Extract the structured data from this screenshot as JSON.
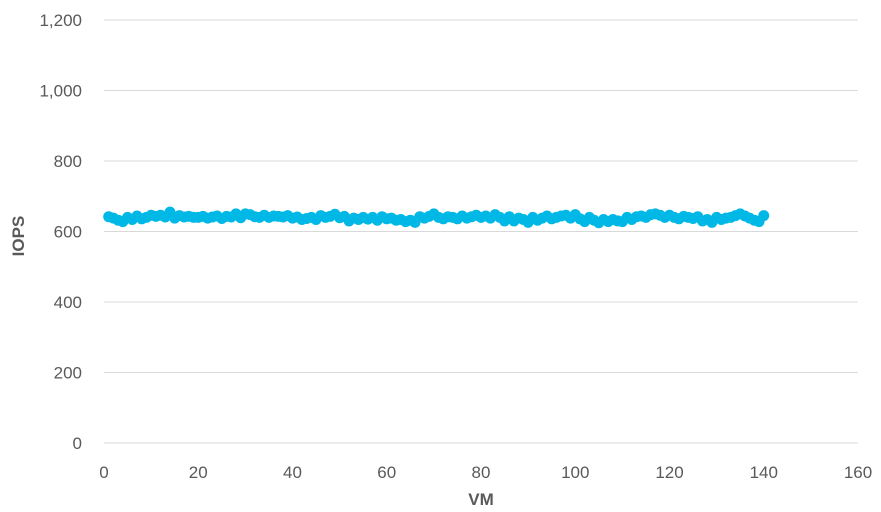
{
  "chart_data": {
    "type": "scatter",
    "title": "",
    "xlabel": "VM",
    "ylabel": "IOPS",
    "xlim": [
      0,
      160
    ],
    "ylim": [
      0,
      1200
    ],
    "xticks": [
      0,
      20,
      40,
      60,
      80,
      100,
      120,
      140,
      160
    ],
    "yticks": [
      0,
      200,
      400,
      600,
      800,
      1000,
      1200
    ],
    "xtick_labels": [
      "0",
      "20",
      "40",
      "60",
      "80",
      "100",
      "120",
      "140",
      "160"
    ],
    "ytick_labels": [
      "0",
      "200",
      "400",
      "600",
      "800",
      "1,000",
      "1,200"
    ],
    "grid": "horizontal",
    "legend": "none",
    "marker_color": "#00b8e6",
    "series": [
      {
        "values": [
          [
            1,
            642
          ],
          [
            2,
            638
          ],
          [
            3,
            632
          ],
          [
            4,
            628
          ],
          [
            5,
            640
          ],
          [
            6,
            634
          ],
          [
            7,
            644
          ],
          [
            8,
            636
          ],
          [
            9,
            640
          ],
          [
            10,
            646
          ],
          [
            11,
            643
          ],
          [
            12,
            646
          ],
          [
            13,
            641
          ],
          [
            14,
            655
          ],
          [
            15,
            638
          ],
          [
            16,
            645
          ],
          [
            17,
            641
          ],
          [
            18,
            643
          ],
          [
            19,
            640
          ],
          [
            20,
            640
          ],
          [
            21,
            643
          ],
          [
            22,
            638
          ],
          [
            23,
            641
          ],
          [
            24,
            644
          ],
          [
            25,
            637
          ],
          [
            26,
            643
          ],
          [
            27,
            641
          ],
          [
            28,
            650
          ],
          [
            29,
            639
          ],
          [
            30,
            650
          ],
          [
            31,
            648
          ],
          [
            32,
            642
          ],
          [
            33,
            640
          ],
          [
            34,
            646
          ],
          [
            35,
            640
          ],
          [
            36,
            644
          ],
          [
            37,
            643
          ],
          [
            38,
            641
          ],
          [
            39,
            645
          ],
          [
            40,
            638
          ],
          [
            41,
            641
          ],
          [
            42,
            634
          ],
          [
            43,
            637
          ],
          [
            44,
            640
          ],
          [
            45,
            634
          ],
          [
            46,
            645
          ],
          [
            47,
            640
          ],
          [
            48,
            643
          ],
          [
            49,
            649
          ],
          [
            50,
            639
          ],
          [
            51,
            643
          ],
          [
            52,
            630
          ],
          [
            53,
            638
          ],
          [
            54,
            634
          ],
          [
            55,
            640
          ],
          [
            56,
            635
          ],
          [
            57,
            640
          ],
          [
            58,
            632
          ],
          [
            59,
            642
          ],
          [
            60,
            636
          ],
          [
            61,
            638
          ],
          [
            62,
            632
          ],
          [
            63,
            634
          ],
          [
            64,
            628
          ],
          [
            65,
            632
          ],
          [
            66,
            626
          ],
          [
            67,
            642
          ],
          [
            68,
            638
          ],
          [
            69,
            643
          ],
          [
            70,
            650
          ],
          [
            71,
            640
          ],
          [
            72,
            636
          ],
          [
            73,
            642
          ],
          [
            74,
            640
          ],
          [
            75,
            636
          ],
          [
            76,
            644
          ],
          [
            77,
            638
          ],
          [
            78,
            642
          ],
          [
            79,
            646
          ],
          [
            80,
            640
          ],
          [
            81,
            644
          ],
          [
            82,
            638
          ],
          [
            83,
            648
          ],
          [
            84,
            640
          ],
          [
            85,
            630
          ],
          [
            86,
            642
          ],
          [
            87,
            630
          ],
          [
            88,
            638
          ],
          [
            89,
            634
          ],
          [
            90,
            626
          ],
          [
            91,
            640
          ],
          [
            92,
            632
          ],
          [
            93,
            638
          ],
          [
            94,
            644
          ],
          [
            95,
            636
          ],
          [
            96,
            640
          ],
          [
            97,
            644
          ],
          [
            98,
            646
          ],
          [
            99,
            638
          ],
          [
            100,
            648
          ],
          [
            101,
            636
          ],
          [
            102,
            628
          ],
          [
            103,
            640
          ],
          [
            104,
            632
          ],
          [
            105,
            625
          ],
          [
            106,
            634
          ],
          [
            107,
            628
          ],
          [
            108,
            634
          ],
          [
            109,
            630
          ],
          [
            110,
            628
          ],
          [
            111,
            640
          ],
          [
            112,
            634
          ],
          [
            113,
            642
          ],
          [
            114,
            644
          ],
          [
            115,
            640
          ],
          [
            116,
            648
          ],
          [
            117,
            650
          ],
          [
            118,
            646
          ],
          [
            119,
            640
          ],
          [
            120,
            646
          ],
          [
            121,
            640
          ],
          [
            122,
            636
          ],
          [
            123,
            643
          ],
          [
            124,
            640
          ],
          [
            125,
            637
          ],
          [
            126,
            642
          ],
          [
            127,
            630
          ],
          [
            128,
            634
          ],
          [
            129,
            626
          ],
          [
            130,
            640
          ],
          [
            131,
            634
          ],
          [
            132,
            638
          ],
          [
            133,
            640
          ],
          [
            134,
            645
          ],
          [
            135,
            650
          ],
          [
            136,
            644
          ],
          [
            137,
            638
          ],
          [
            138,
            632
          ],
          [
            139,
            628
          ],
          [
            140,
            645
          ]
        ]
      }
    ]
  }
}
